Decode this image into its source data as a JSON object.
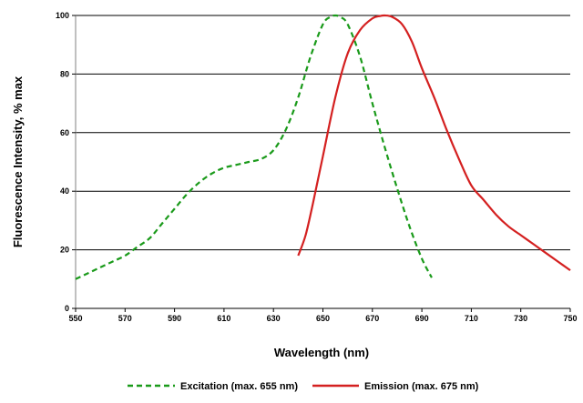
{
  "chart_data": {
    "type": "line",
    "title": "",
    "xlabel": "Wavelength (nm)",
    "ylabel": "Fluorescence Intensity, % max",
    "xlim": [
      550,
      750
    ],
    "ylim": [
      0,
      100
    ],
    "x_ticks": [
      550,
      570,
      590,
      610,
      630,
      650,
      670,
      690,
      710,
      730,
      750
    ],
    "y_ticks": [
      0,
      20,
      40,
      60,
      80,
      100
    ],
    "grid": "horizontal",
    "legend_position": "bottom",
    "series": [
      {
        "name": "Excitation (max. 655 nm)",
        "color": "#1a9a1a",
        "style": "dashed",
        "x": [
          550,
          555,
          560,
          565,
          570,
          575,
          580,
          585,
          590,
          595,
          600,
          605,
          610,
          615,
          620,
          625,
          630,
          635,
          640,
          645,
          650,
          653,
          655,
          657,
          660,
          665,
          670,
          675,
          680,
          685,
          690,
          694
        ],
        "y": [
          10,
          12,
          14,
          16,
          18,
          21,
          24,
          29,
          34,
          39,
          43,
          46,
          48,
          49,
          50,
          51,
          54,
          61,
          72,
          86,
          97,
          99.5,
          100,
          99.5,
          97,
          86,
          70,
          55,
          41,
          28,
          17,
          10.5
        ]
      },
      {
        "name": "Emission (max. 675 nm)",
        "color": "#d42020",
        "style": "solid",
        "x": [
          640,
          643,
          646,
          650,
          655,
          660,
          665,
          670,
          673,
          675,
          678,
          682,
          686,
          690,
          695,
          700,
          705,
          710,
          715,
          720,
          725,
          730,
          735,
          740,
          745,
          750
        ],
        "y": [
          18,
          25,
          36,
          52,
          72,
          87,
          95,
          99,
          99.8,
          100,
          99.5,
          97,
          91,
          82,
          72,
          61,
          51,
          42,
          37,
          32,
          28,
          25,
          22,
          19,
          16,
          13
        ]
      }
    ]
  }
}
